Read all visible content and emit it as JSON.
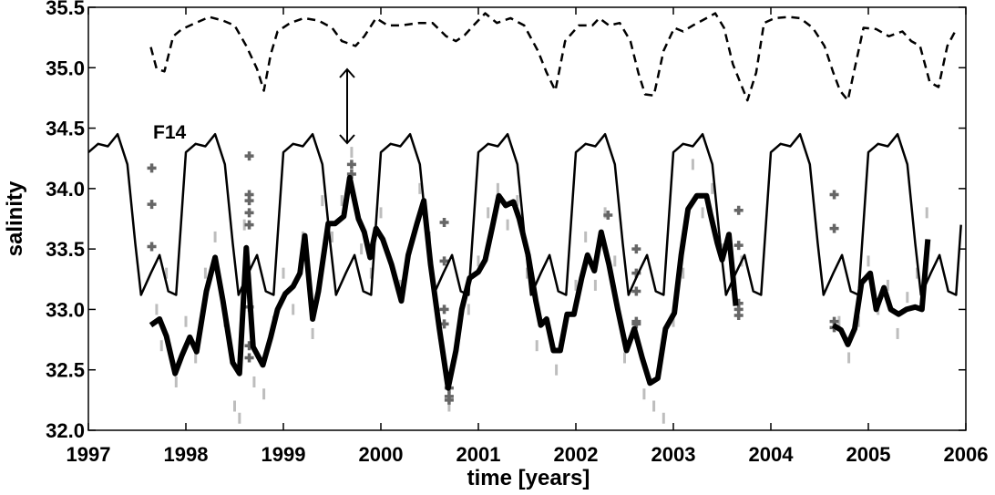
{
  "chart_data": {
    "type": "line",
    "xlabel": "time [years]",
    "ylabel": "salinity",
    "xlim": [
      1997,
      2006
    ],
    "xticks": [
      1997,
      1998,
      1999,
      2000,
      2001,
      2002,
      2003,
      2004,
      2005,
      2006
    ],
    "ylim": [
      32,
      35.5
    ],
    "yticks": [
      {
        "value": 32,
        "label": "32.0"
      },
      32.5,
      {
        "value": 33,
        "label": "33.0"
      },
      33.5,
      {
        "value": 34,
        "label": "34.0"
      },
      34.5,
      {
        "value": 35,
        "label": "35.0"
      },
      35.5
    ],
    "grid": false,
    "annotations": [
      "F14"
    ],
    "series": [
      {
        "color": "#bdbdbd",
        "style": "dots",
        "marker": "dot",
        "x": [
          1997.7,
          1997.75,
          1997.8,
          1997.9,
          1998.0,
          1998.1,
          1998.2,
          1998.3,
          1998.4,
          1998.5,
          1998.55,
          1998.6,
          1998.7,
          1998.8,
          1998.9,
          1999.0,
          1999.1,
          1999.2,
          1999.3,
          1999.4,
          1999.5,
          1999.6,
          1999.7,
          1999.8,
          1999.9,
          2000.0,
          2000.2,
          2000.3,
          2000.4,
          2000.5,
          2000.6,
          2000.7,
          2000.8,
          2000.9,
          2001.0,
          2001.1,
          2001.2,
          2001.3,
          2001.4,
          2001.5,
          2001.6,
          2001.7,
          2001.8,
          2001.9,
          2002.0,
          2002.1,
          2002.2,
          2002.3,
          2002.4,
          2002.5,
          2002.6,
          2002.7,
          2002.8,
          2002.9,
          2003.0,
          2003.1,
          2003.2,
          2003.3,
          2003.4,
          2003.5,
          2003.6,
          2003.7,
          2004.7,
          2004.8,
          2004.9,
          2005.0,
          2005.1,
          2005.2,
          2005.3,
          2005.4,
          2005.5,
          2005.6
        ],
        "values": [
          33.0,
          32.7,
          33.3,
          32.4,
          32.9,
          32.6,
          33.3,
          33.6,
          32.9,
          32.2,
          32.1,
          33.7,
          32.4,
          32.3,
          32.9,
          33.3,
          33.0,
          33.6,
          32.8,
          33.9,
          33.6,
          33.9,
          34.3,
          33.5,
          33.3,
          33.8,
          33.2,
          33.5,
          34.0,
          33.6,
          32.8,
          32.2,
          32.8,
          33.0,
          33.4,
          33.8,
          34.0,
          33.7,
          33.9,
          33.3,
          32.7,
          32.9,
          32.5,
          32.9,
          33.2,
          33.6,
          33.2,
          33.8,
          33.4,
          32.6,
          32.8,
          32.3,
          32.2,
          32.1,
          32.9,
          33.3,
          34.2,
          33.8,
          34.0,
          33.5,
          33.2,
          33.4,
          32.9,
          32.6,
          32.9,
          33.4,
          33.0,
          33.2,
          32.8,
          33.1,
          33.3,
          33.8
        ]
      },
      {
        "color": "#666666",
        "style": "crosses",
        "marker": "+",
        "x": [
          1997.65,
          1997.65,
          1997.65,
          1998.65,
          1998.65,
          1998.65,
          1998.65,
          1998.65,
          1998.65,
          1998.65,
          1998.65,
          1999.7,
          1999.7,
          2000.65,
          2000.65,
          2000.65,
          2000.65,
          2000.7,
          2000.7,
          2000.7,
          2002.33,
          2002.62,
          2002.62,
          2002.62,
          2002.62,
          2002.62,
          2003.67,
          2003.67,
          2003.67,
          2003.67,
          2003.67,
          2004.65,
          2004.65,
          2004.65,
          2004.65
        ],
        "values": [
          34.17,
          33.87,
          33.52,
          34.27,
          33.95,
          33.9,
          33.8,
          33.7,
          33.02,
          32.7,
          32.6,
          34.2,
          34.12,
          33.72,
          33.4,
          33.0,
          32.88,
          32.35,
          32.28,
          32.25,
          33.78,
          33.5,
          33.3,
          33.15,
          32.9,
          32.88,
          33.82,
          33.53,
          33.05,
          33.0,
          32.95,
          33.95,
          33.67,
          32.9,
          32.85
        ]
      },
      {
        "color": "#000000",
        "style": "solid",
        "width": 2.5,
        "x": [
          1997,
          1997.1,
          1997.2,
          1997.3,
          1997.4,
          1997.48,
          1997.54,
          1997.64,
          1997.73,
          1997.82,
          1997.9,
          1998,
          1998.1,
          1998.2,
          1998.3,
          1998.4,
          1998.48,
          1998.54,
          1998.64,
          1998.73,
          1998.82,
          1998.9,
          1999,
          1999.1,
          1999.2,
          1999.3,
          1999.4,
          1999.48,
          1999.54,
          1999.64,
          1999.73,
          1999.82,
          1999.9,
          2000,
          2000.1,
          2000.2,
          2000.3,
          2000.4,
          2000.48,
          2000.54,
          2000.64,
          2000.73,
          2000.82,
          2000.9,
          2001,
          2001.1,
          2001.2,
          2001.3,
          2001.4,
          2001.48,
          2001.54,
          2001.64,
          2001.73,
          2001.82,
          2001.9,
          2002,
          2002.1,
          2002.2,
          2002.3,
          2002.4,
          2002.48,
          2002.54,
          2002.64,
          2002.73,
          2002.82,
          2002.9,
          2003,
          2003.1,
          2003.2,
          2003.3,
          2003.4,
          2003.48,
          2003.54,
          2003.64,
          2003.73,
          2003.82,
          2003.9,
          2004,
          2004.1,
          2004.2,
          2004.3,
          2004.4,
          2004.48,
          2004.54,
          2004.64,
          2004.73,
          2004.82,
          2004.9,
          2005,
          2005.1,
          2005.2,
          2005.3,
          2005.4,
          2005.48,
          2005.54,
          2005.64,
          2005.73,
          2005.82,
          2005.9,
          2005.95
        ],
        "values": [
          34.3,
          34.37,
          34.35,
          34.45,
          34.2,
          33.55,
          33.12,
          33.3,
          33.45,
          33.15,
          33.12,
          34.3,
          34.37,
          34.35,
          34.45,
          34.2,
          33.55,
          33.12,
          33.3,
          33.45,
          33.15,
          33.12,
          34.3,
          34.37,
          34.35,
          34.45,
          34.2,
          33.55,
          33.12,
          33.3,
          33.45,
          33.15,
          33.12,
          34.3,
          34.37,
          34.35,
          34.45,
          34.2,
          33.55,
          33.12,
          33.3,
          33.45,
          33.15,
          33.12,
          34.3,
          34.37,
          34.35,
          34.45,
          34.2,
          33.55,
          33.12,
          33.3,
          33.45,
          33.15,
          33.12,
          34.3,
          34.37,
          34.35,
          34.45,
          34.2,
          33.55,
          33.12,
          33.3,
          33.45,
          33.15,
          33.12,
          34.3,
          34.37,
          34.35,
          34.45,
          34.2,
          33.55,
          33.12,
          33.3,
          33.45,
          33.15,
          33.12,
          34.3,
          34.37,
          34.35,
          34.45,
          34.2,
          33.55,
          33.12,
          33.3,
          33.45,
          33.15,
          33.12,
          34.3,
          34.37,
          34.35,
          34.45,
          34.2,
          33.55,
          33.12,
          33.3,
          33.45,
          33.15,
          33.12,
          33.7
        ]
      },
      {
        "color": "#000000",
        "style": "dashed",
        "width": 2.5,
        "x": [
          1997.64,
          1997.7,
          1997.78,
          1997.87,
          1997.96,
          1998.1,
          1998.24,
          1998.38,
          1998.5,
          1998.62,
          1998.73,
          1998.8,
          1998.87,
          1998.94,
          1999.07,
          1999.21,
          1999.36,
          1999.5,
          1999.6,
          1999.74,
          1999.83,
          1999.95,
          2000.07,
          2000.21,
          2000.39,
          2000.53,
          2000.67,
          2000.77,
          2000.86,
          2000.95,
          2001.07,
          2001.19,
          2001.33,
          2001.47,
          2001.61,
          2001.7,
          2001.79,
          2001.89,
          2002.03,
          2002.17,
          2002.24,
          2002.34,
          2002.45,
          2002.56,
          2002.64,
          2002.71,
          2002.8,
          2002.9,
          2003.01,
          2003.1,
          2003.2,
          2003.34,
          2003.43,
          2003.52,
          2003.61,
          2003.76,
          2003.85,
          2003.93,
          2004.04,
          2004.18,
          2004.3,
          2004.43,
          2004.55,
          2004.64,
          2004.71,
          2004.79,
          2004.88,
          2004.95,
          2005.08,
          2005.21,
          2005.35,
          2005.44,
          2005.53,
          2005.63,
          2005.72,
          2005.81,
          2005.89
        ],
        "values": [
          35.17,
          34.99,
          34.97,
          35.26,
          35.32,
          35.37,
          35.42,
          35.39,
          35.35,
          35.18,
          34.99,
          34.81,
          35.11,
          35.3,
          35.37,
          35.41,
          35.39,
          35.33,
          35.22,
          35.18,
          35.26,
          35.41,
          35.35,
          35.35,
          35.37,
          35.37,
          35.26,
          35.22,
          35.27,
          35.35,
          35.45,
          35.37,
          35.41,
          35.35,
          35.14,
          34.96,
          34.81,
          35.22,
          35.35,
          35.35,
          35.41,
          35.35,
          35.37,
          35.22,
          34.96,
          34.78,
          34.77,
          35.14,
          35.33,
          35.3,
          35.35,
          35.41,
          35.45,
          35.33,
          35.03,
          34.73,
          34.96,
          35.37,
          35.41,
          35.42,
          35.41,
          35.33,
          35.18,
          34.96,
          34.81,
          34.73,
          35.07,
          35.33,
          35.32,
          35.26,
          35.3,
          35.22,
          35.18,
          34.88,
          34.84,
          35.18,
          35.3
        ]
      },
      {
        "color": "#000000",
        "style": "solid",
        "width": 6,
        "x": [
          1997.64,
          1997.73,
          1997.8,
          1997.89,
          1997.96,
          1998.04,
          1998.11,
          1998.21,
          1998.3,
          1998.38,
          1998.48,
          1998.55,
          1998.62,
          1998.69,
          1998.79,
          1998.87,
          1998.94,
          1999.02,
          1999.1,
          1999.17,
          1999.22,
          1999.3,
          1999.36,
          1999.46,
          1999.53,
          1999.62,
          1999.68,
          1999.77,
          1999.83,
          1999.89,
          1999.95,
          2000.02,
          2000.11,
          2000.21,
          2000.28,
          2000.37,
          2000.44,
          2000.51,
          2000.6,
          2000.69,
          2000.77,
          2000.83,
          2000.91,
          2001.0,
          2001.07,
          2001.14,
          2001.21,
          2001.28,
          2001.36,
          2001.42,
          2001.51,
          2001.59,
          2001.64,
          2001.7,
          2001.77,
          2001.84,
          2001.91,
          2001.98,
          2002.06,
          2002.12,
          2002.19,
          2002.26,
          2002.34,
          2002.43,
          2002.52,
          2002.6,
          2002.68,
          2002.76,
          2002.84,
          2002.92,
          2003.01,
          2003.08,
          2003.15,
          2003.24,
          2003.34,
          2003.38,
          2003.45,
          2003.5,
          2003.57,
          2003.64,
          2004.2,
          2004.64,
          2004.72,
          2004.79,
          2004.86,
          2004.93,
          2005.02,
          2005.08,
          2005.16,
          2005.23,
          2005.31,
          2005.39,
          2005.48,
          2005.55,
          2005.61
        ],
        "values": [
          32.87,
          32.92,
          32.78,
          32.47,
          32.62,
          32.77,
          32.65,
          33.15,
          33.43,
          33.07,
          32.56,
          32.47,
          33.51,
          32.69,
          32.54,
          32.77,
          33.0,
          33.13,
          33.19,
          33.3,
          33.61,
          32.92,
          33.15,
          33.71,
          33.71,
          33.77,
          34.09,
          33.75,
          33.64,
          33.43,
          33.67,
          33.58,
          33.37,
          33.07,
          33.45,
          33.71,
          33.9,
          33.37,
          32.84,
          32.35,
          32.66,
          33.0,
          33.26,
          33.31,
          33.41,
          33.67,
          33.94,
          33.86,
          33.89,
          33.75,
          33.45,
          33.07,
          32.87,
          32.92,
          32.66,
          32.66,
          32.96,
          32.96,
          33.26,
          33.45,
          33.32,
          33.64,
          33.37,
          33.0,
          32.66,
          32.84,
          32.6,
          32.39,
          32.43,
          32.84,
          32.97,
          33.45,
          33.83,
          33.94,
          33.94,
          33.79,
          33.55,
          33.41,
          33.62,
          33.03,
          null,
          32.87,
          32.83,
          32.71,
          32.84,
          33.22,
          33.3,
          33.0,
          33.18,
          33.0,
          32.96,
          33.0,
          33.02,
          33.0,
          33.58
        ]
      }
    ]
  }
}
